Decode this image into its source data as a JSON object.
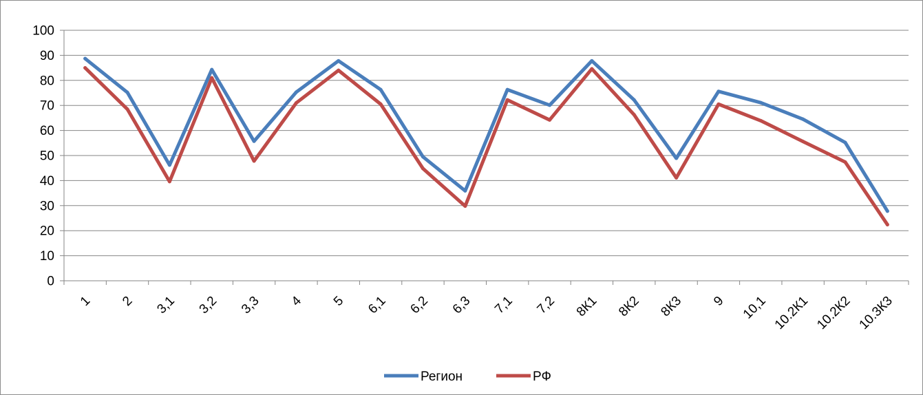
{
  "chart_data": {
    "type": "line",
    "categories": [
      "1",
      "2",
      "3,1",
      "3,2",
      "3,3",
      "4",
      "5",
      "6,1",
      "6,2",
      "6,3",
      "7,1",
      "7,2",
      "8К1",
      "8К2",
      "8К3",
      "9",
      "10,1",
      "10.2К1",
      "10.2К2",
      "10.3К3"
    ],
    "ylim": [
      0,
      100
    ],
    "yticks": [
      0,
      10,
      20,
      30,
      40,
      50,
      60,
      70,
      80,
      90,
      100
    ],
    "grid": true,
    "legend_position": "bottom",
    "series": [
      {
        "name": "Регион",
        "color": "#4a7ebb",
        "values": [
          88.7,
          75.2,
          46.2,
          84.3,
          55.7,
          75.3,
          87.8,
          76.3,
          49.5,
          35.9,
          76.3,
          70.1,
          87.8,
          72.2,
          48.9,
          75.6,
          71.1,
          64.5,
          55.2,
          27.8
        ]
      },
      {
        "name": "РФ",
        "color": "#be4b48",
        "values": [
          85.0,
          68.5,
          39.6,
          81.0,
          47.8,
          71.0,
          84.0,
          70.5,
          44.8,
          29.8,
          72.2,
          64.2,
          84.6,
          66.3,
          41.1,
          70.5,
          63.9,
          55.6,
          47.4,
          22.4
        ]
      }
    ]
  }
}
